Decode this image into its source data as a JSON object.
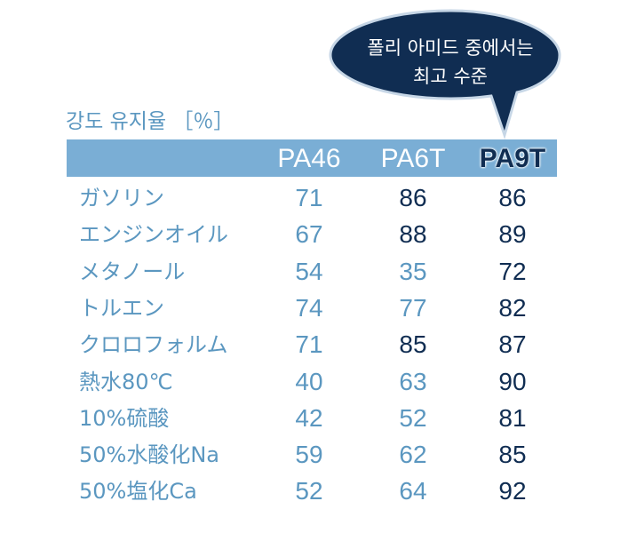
{
  "colors": {
    "header_band": "#7aaed5",
    "header_text": "#ffffff",
    "highlight_text": "#102d52",
    "light_value": "#5b97c0",
    "dark_value": "#102d52",
    "bubble_fill": "#102d52",
    "bubble_stroke": "#c6d6e6"
  },
  "bubble": {
    "line1": "폴리 아미드 중에서는",
    "line2": "최고 수준"
  },
  "chart_data": {
    "type": "table",
    "title": "강도 유지율 ［％］",
    "columns": [
      "PA46",
      "PA6T",
      "PA9T"
    ],
    "highlight_column": "PA9T",
    "rows": [
      {
        "label": "ガソリン",
        "values": [
          71,
          86,
          86
        ],
        "emphasis": [
          "light",
          "dark",
          "dark"
        ]
      },
      {
        "label": "エンジンオイル",
        "values": [
          67,
          88,
          89
        ],
        "emphasis": [
          "light",
          "dark",
          "dark"
        ]
      },
      {
        "label": "メタノール",
        "values": [
          54,
          35,
          72
        ],
        "emphasis": [
          "light",
          "light",
          "dark"
        ]
      },
      {
        "label": "トルエン",
        "values": [
          74,
          77,
          82
        ],
        "emphasis": [
          "light",
          "light",
          "dark"
        ]
      },
      {
        "label": "クロロフォルム",
        "values": [
          71,
          85,
          87
        ],
        "emphasis": [
          "light",
          "dark",
          "dark"
        ]
      },
      {
        "label": "熱水80℃",
        "values": [
          40,
          63,
          90
        ],
        "emphasis": [
          "light",
          "light",
          "dark"
        ]
      },
      {
        "label": "10%硫酸",
        "values": [
          42,
          52,
          81
        ],
        "emphasis": [
          "light",
          "light",
          "dark"
        ]
      },
      {
        "label": "50%水酸化Na",
        "values": [
          59,
          62,
          85
        ],
        "emphasis": [
          "light",
          "light",
          "dark"
        ]
      },
      {
        "label": "50%塩化Ca",
        "values": [
          52,
          64,
          92
        ],
        "emphasis": [
          "light",
          "light",
          "dark"
        ]
      }
    ]
  }
}
